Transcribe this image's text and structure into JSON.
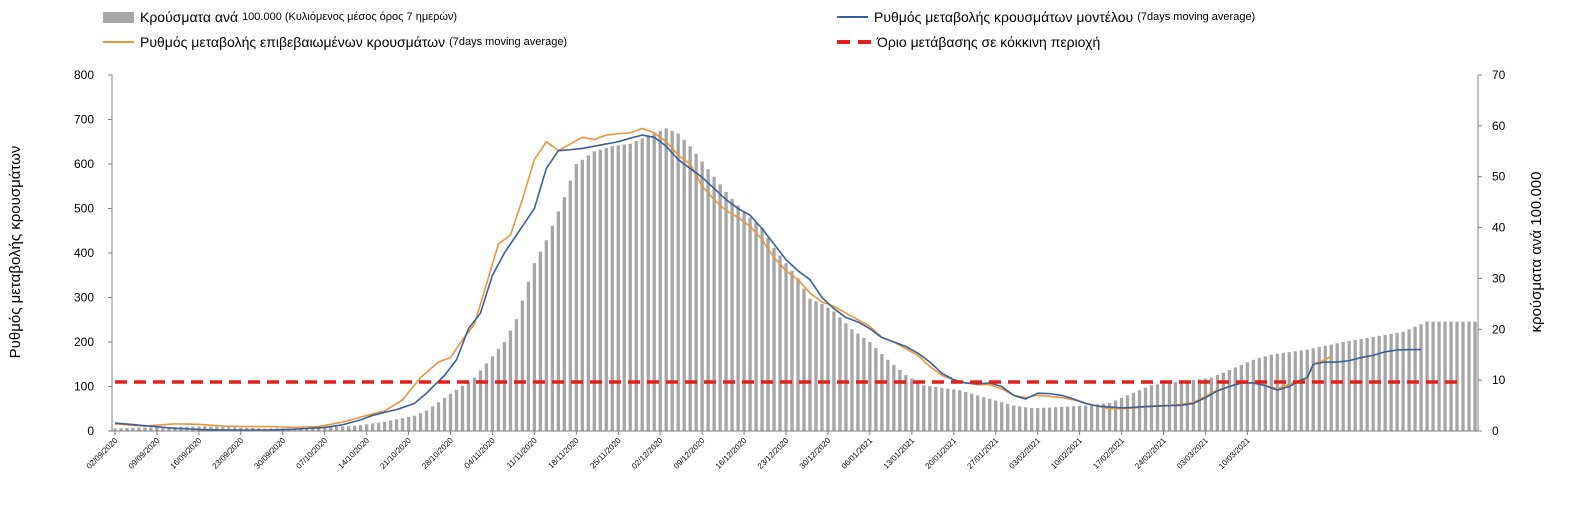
{
  "legend": {
    "bars_label": "Κρούσματα ανά",
    "bars_suffix": "100.000 (Κυλιόμενος μέσος όρος 7 ημερών)",
    "model_label": "Ρυθμός μεταβολής κρουσμάτων μοντέλου",
    "model_suffix": "(7days moving average)",
    "confirmed_label": "Ρυθμός μεταβολής επιβεβαιωμένων κρουσμάτων",
    "confirmed_suffix": "(7days moving average)",
    "threshold_label": "Όριο μετάβασης σε κόκκινη περιοχή"
  },
  "colors": {
    "bars": "#a6a6a6",
    "model": "#3a5f9a",
    "confirmed": "#e8963e",
    "threshold": "#e0201c"
  },
  "chart_data": {
    "type": "bar+line",
    "title": "",
    "ylabel_left": "Ρυθμός μεταβολής κρουσμάτων",
    "ylabel_right": "κρούσματα ανά 100.000",
    "y_left_range": [
      0,
      800
    ],
    "y_left_ticks": [
      0,
      100,
      200,
      300,
      400,
      500,
      600,
      700,
      800
    ],
    "y_right_range": [
      0,
      70
    ],
    "y_right_ticks": [
      0,
      10,
      20,
      30,
      40,
      50,
      60,
      70
    ],
    "x_start": "02/09/2020",
    "x_days": 200,
    "x_tick_labels": [
      "02/09/2020",
      "09/09/2020",
      "16/09/2020",
      "23/09/2020",
      "30/09/2020",
      "07/10/2020",
      "14/10/2020",
      "21/10/2020",
      "28/10/2020",
      "04/11/2020",
      "11/11/2020",
      "18/11/2020",
      "25/11/2020",
      "02/12/2020",
      "09/12/2020",
      "16/12/2020",
      "23/12/2020",
      "30/12/2020",
      "06/01/2021",
      "13/01/2021",
      "20/01/2021",
      "27/01/2021",
      "03/02/2021",
      "10/02/2021",
      "17/02/2021",
      "24/02/2021",
      "03/03/2021",
      "10/03/2021"
    ],
    "bars_per100k_keypoints": [
      [
        0,
        0.5
      ],
      [
        5,
        0.7
      ],
      [
        10,
        0.8
      ],
      [
        15,
        0.9
      ],
      [
        20,
        0.7
      ],
      [
        25,
        0.5
      ],
      [
        30,
        0.5
      ],
      [
        35,
        0.7
      ],
      [
        40,
        1.0
      ],
      [
        45,
        1.8
      ],
      [
        50,
        3.0
      ],
      [
        52,
        4.0
      ],
      [
        55,
        6.5
      ],
      [
        60,
        10.5
      ],
      [
        65,
        17.5
      ],
      [
        67,
        22
      ],
      [
        70,
        33
      ],
      [
        72,
        37.5
      ],
      [
        75,
        46
      ],
      [
        77,
        52.5
      ],
      [
        80,
        55
      ],
      [
        83,
        56
      ],
      [
        86,
        56.5
      ],
      [
        88,
        57.5
      ],
      [
        90,
        58.5
      ],
      [
        92,
        59.5
      ],
      [
        94,
        58.5
      ],
      [
        96,
        56
      ],
      [
        98,
        53
      ],
      [
        100,
        50
      ],
      [
        102,
        47
      ],
      [
        105,
        43
      ],
      [
        108,
        40
      ],
      [
        110,
        36
      ],
      [
        112,
        33
      ],
      [
        114,
        30
      ],
      [
        116,
        26
      ],
      [
        118,
        25
      ],
      [
        120,
        23.5
      ],
      [
        123,
        20
      ],
      [
        126,
        17.5
      ],
      [
        129,
        14
      ],
      [
        132,
        11
      ],
      [
        135,
        9
      ],
      [
        138,
        8.5
      ],
      [
        141,
        8
      ],
      [
        144,
        7
      ],
      [
        147,
        6
      ],
      [
        150,
        5
      ],
      [
        153,
        4.5
      ],
      [
        156,
        4.6
      ],
      [
        159,
        4.8
      ],
      [
        162,
        5
      ],
      [
        166,
        5.5
      ],
      [
        170,
        7.5
      ],
      [
        173,
        9
      ],
      [
        176,
        9.5
      ],
      [
        180,
        10
      ],
      [
        183,
        10.5
      ],
      [
        187,
        12.5
      ],
      [
        190,
        14
      ],
      [
        193,
        15
      ],
      [
        196,
        15.5
      ],
      [
        199,
        16
      ]
    ],
    "model_rate_keypoints": [
      [
        0,
        18
      ],
      [
        5,
        12
      ],
      [
        10,
        6
      ],
      [
        15,
        3
      ],
      [
        20,
        2
      ],
      [
        25,
        2
      ],
      [
        30,
        4
      ],
      [
        35,
        8
      ],
      [
        38,
        14
      ],
      [
        41,
        25
      ],
      [
        43,
        35
      ],
      [
        45,
        42
      ],
      [
        47,
        48
      ],
      [
        50,
        62
      ],
      [
        52,
        85
      ],
      [
        55,
        125
      ],
      [
        57,
        160
      ],
      [
        59,
        230
      ],
      [
        61,
        265
      ],
      [
        63,
        350
      ],
      [
        65,
        400
      ],
      [
        67,
        440
      ],
      [
        70,
        500
      ],
      [
        72,
        590
      ],
      [
        74,
        630
      ],
      [
        76,
        632
      ],
      [
        78,
        635
      ],
      [
        80,
        640
      ],
      [
        82,
        645
      ],
      [
        84,
        650
      ],
      [
        86,
        658
      ],
      [
        88,
        665
      ],
      [
        90,
        660
      ],
      [
        92,
        640
      ],
      [
        94,
        610
      ],
      [
        96,
        590
      ],
      [
        98,
        570
      ],
      [
        100,
        545
      ],
      [
        102,
        520
      ],
      [
        104,
        500
      ],
      [
        106,
        485
      ],
      [
        108,
        455
      ],
      [
        110,
        420
      ],
      [
        112,
        385
      ],
      [
        114,
        360
      ],
      [
        116,
        340
      ],
      [
        118,
        300
      ],
      [
        120,
        275
      ],
      [
        122,
        255
      ],
      [
        124,
        245
      ],
      [
        126,
        230
      ],
      [
        128,
        210
      ],
      [
        130,
        200
      ],
      [
        132,
        190
      ],
      [
        134,
        175
      ],
      [
        136,
        155
      ],
      [
        138,
        130
      ],
      [
        140,
        115
      ],
      [
        142,
        108
      ],
      [
        144,
        106
      ],
      [
        146,
        108
      ],
      [
        148,
        100
      ],
      [
        150,
        80
      ],
      [
        152,
        72
      ],
      [
        154,
        85
      ],
      [
        156,
        84
      ],
      [
        158,
        80
      ],
      [
        160,
        72
      ],
      [
        162,
        62
      ],
      [
        164,
        56
      ],
      [
        166,
        54
      ],
      [
        168,
        52
      ],
      [
        170,
        53
      ],
      [
        172,
        55
      ],
      [
        174,
        56
      ],
      [
        176,
        57
      ],
      [
        178,
        58
      ],
      [
        180,
        62
      ],
      [
        182,
        75
      ],
      [
        184,
        90
      ],
      [
        186,
        100
      ],
      [
        188,
        108
      ],
      [
        190,
        108
      ],
      [
        192,
        102
      ],
      [
        194,
        92
      ],
      [
        196,
        100
      ],
      [
        198,
        115
      ],
      [
        199,
        120
      ]
    ],
    "confirmed_rate_keypoints": [
      [
        0,
        16
      ],
      [
        5,
        11
      ],
      [
        10,
        16
      ],
      [
        14,
        15
      ],
      [
        18,
        11
      ],
      [
        22,
        10
      ],
      [
        26,
        10
      ],
      [
        30,
        8
      ],
      [
        34,
        10
      ],
      [
        38,
        20
      ],
      [
        42,
        35
      ],
      [
        45,
        45
      ],
      [
        48,
        70
      ],
      [
        51,
        120
      ],
      [
        54,
        155
      ],
      [
        56,
        165
      ],
      [
        58,
        205
      ],
      [
        60,
        240
      ],
      [
        62,
        330
      ],
      [
        64,
        420
      ],
      [
        66,
        440
      ],
      [
        68,
        520
      ],
      [
        70,
        610
      ],
      [
        72,
        650
      ],
      [
        74,
        630
      ],
      [
        76,
        645
      ],
      [
        78,
        660
      ],
      [
        80,
        655
      ],
      [
        82,
        665
      ],
      [
        84,
        668
      ],
      [
        86,
        670
      ],
      [
        88,
        680
      ],
      [
        90,
        670
      ],
      [
        92,
        650
      ],
      [
        94,
        620
      ],
      [
        96,
        600
      ],
      [
        98,
        550
      ],
      [
        100,
        520
      ],
      [
        102,
        495
      ],
      [
        104,
        480
      ],
      [
        106,
        460
      ],
      [
        108,
        430
      ],
      [
        110,
        390
      ],
      [
        112,
        360
      ],
      [
        114,
        340
      ],
      [
        116,
        310
      ],
      [
        118,
        290
      ],
      [
        120,
        280
      ],
      [
        122,
        265
      ],
      [
        124,
        250
      ],
      [
        126,
        235
      ],
      [
        128,
        210
      ],
      [
        130,
        200
      ],
      [
        132,
        185
      ],
      [
        134,
        170
      ],
      [
        136,
        145
      ],
      [
        138,
        125
      ],
      [
        140,
        115
      ],
      [
        142,
        108
      ],
      [
        144,
        104
      ],
      [
        146,
        104
      ],
      [
        148,
        95
      ],
      [
        150,
        80
      ],
      [
        152,
        75
      ],
      [
        154,
        80
      ],
      [
        156,
        78
      ],
      [
        158,
        75
      ],
      [
        160,
        70
      ],
      [
        162,
        62
      ],
      [
        164,
        56
      ],
      [
        166,
        50
      ],
      [
        168,
        50
      ],
      [
        170,
        52
      ],
      [
        172,
        54
      ],
      [
        174,
        56
      ],
      [
        176,
        58
      ],
      [
        178,
        60
      ],
      [
        180,
        64
      ],
      [
        182,
        78
      ],
      [
        184,
        92
      ],
      [
        186,
        100
      ],
      [
        188,
        108
      ],
      [
        190,
        108
      ],
      [
        192,
        102
      ],
      [
        194,
        95
      ],
      [
        196,
        105
      ],
      [
        198,
        115
      ],
      [
        199,
        118
      ]
    ],
    "model_tail_keypoints": [
      [
        194,
        92
      ],
      [
        196,
        110
      ],
      [
        198,
        130
      ],
      [
        200,
        150
      ],
      [
        202,
        155
      ],
      [
        204,
        155
      ],
      [
        206,
        158
      ],
      [
        208,
        165
      ],
      [
        210,
        170
      ],
      [
        212,
        178
      ],
      [
        214,
        182
      ],
      [
        216,
        183
      ],
      [
        218,
        183
      ]
    ],
    "confirmed_tail_keypoints": [
      [
        194,
        95
      ],
      [
        196,
        115
      ],
      [
        198,
        135
      ],
      [
        200,
        150
      ],
      [
        202,
        160
      ],
      [
        203,
        168
      ]
    ],
    "threshold_rate": 110
  }
}
